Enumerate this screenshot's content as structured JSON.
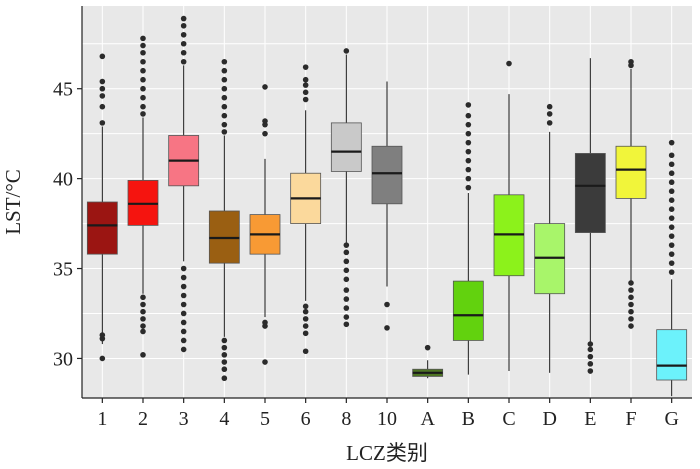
{
  "chart_data": {
    "type": "box",
    "xlabel": "LCZ类别",
    "ylabel": "LST/°C",
    "ylim": [
      27.8,
      49.6
    ],
    "yticks": [
      30,
      35,
      40,
      45
    ],
    "grid": true,
    "categories": [
      "1",
      "2",
      "3",
      "4",
      "5",
      "6",
      "8",
      "10",
      "A",
      "B",
      "C",
      "D",
      "E",
      "F",
      "G"
    ],
    "series": [
      {
        "category": "1",
        "color": "#9b1512",
        "whisker_low": 30.8,
        "q1": 35.8,
        "median": 37.4,
        "q3": 38.7,
        "whisker_high": 42.9,
        "outliers": [
          30.0,
          31.1,
          31.3,
          43.1,
          44.0,
          44.6,
          45.0,
          45.4,
          46.8
        ]
      },
      {
        "category": "2",
        "color": "#f5140f",
        "whisker_low": 33.6,
        "q1": 37.4,
        "median": 38.6,
        "q3": 39.9,
        "whisker_high": 43.4,
        "outliers": [
          30.2,
          31.5,
          31.8,
          32.2,
          32.6,
          33.0,
          33.4,
          43.6,
          44.0,
          44.5,
          45.0,
          45.5,
          46.0,
          46.5,
          47.0,
          47.4,
          47.8
        ]
      },
      {
        "category": "3",
        "color": "#f77584",
        "whisker_low": 35.4,
        "q1": 39.6,
        "median": 41.0,
        "q3": 42.4,
        "whisker_high": 46.3,
        "outliers": [
          30.5,
          31.0,
          31.5,
          32.0,
          32.5,
          33.0,
          33.5,
          34.0,
          34.5,
          35.0,
          46.5,
          47.0,
          47.5,
          48.0,
          48.5,
          48.9
        ]
      },
      {
        "category": "4",
        "color": "#9a5f12",
        "whisker_low": 31.2,
        "q1": 35.3,
        "median": 36.7,
        "q3": 38.2,
        "whisker_high": 42.4,
        "outliers": [
          28.9,
          29.4,
          29.8,
          30.2,
          30.6,
          31.0,
          42.6,
          43.0,
          43.5,
          44.0,
          44.5,
          45.0,
          45.5,
          46.0,
          46.5
        ]
      },
      {
        "category": "5",
        "color": "#f89a34",
        "whisker_low": 32.3,
        "q1": 35.8,
        "median": 36.9,
        "q3": 38.0,
        "whisker_high": 41.1,
        "outliers": [
          29.8,
          31.8,
          32.0,
          42.5,
          43.0,
          43.2,
          45.1
        ]
      },
      {
        "category": "6",
        "color": "#fbd99c",
        "whisker_low": 33.2,
        "q1": 37.5,
        "median": 38.9,
        "q3": 40.3,
        "whisker_high": 43.8,
        "outliers": [
          30.4,
          31.4,
          31.8,
          32.2,
          32.6,
          32.9,
          44.4,
          44.8,
          45.2,
          45.5,
          46.2
        ]
      },
      {
        "category": "8",
        "color": "#c9c9c9",
        "whisker_low": 36.4,
        "q1": 40.4,
        "median": 41.5,
        "q3": 43.1,
        "whisker_high": 46.9,
        "outliers": [
          31.9,
          32.3,
          32.8,
          33.3,
          33.8,
          34.4,
          34.9,
          35.4,
          35.9,
          36.3,
          47.1
        ]
      },
      {
        "category": "10",
        "color": "#7f7f7f",
        "whisker_low": 34.0,
        "q1": 38.6,
        "median": 40.3,
        "q3": 41.8,
        "whisker_high": 45.4,
        "outliers": [
          31.7,
          33.0
        ]
      },
      {
        "category": "A",
        "color": "#4e7424",
        "whisker_low": 28.9,
        "q1": 29.0,
        "median": 29.2,
        "q3": 29.4,
        "whisker_high": 29.9,
        "outliers": [
          30.6
        ]
      },
      {
        "category": "B",
        "color": "#62d20e",
        "whisker_low": 29.1,
        "q1": 31.0,
        "median": 32.4,
        "q3": 34.3,
        "whisker_high": 39.2,
        "outliers": [
          39.5,
          40.0,
          40.5,
          41.0,
          41.5,
          42.0,
          42.5,
          43.0,
          43.5,
          44.1
        ]
      },
      {
        "category": "C",
        "color": "#8cf21b",
        "whisker_low": 29.3,
        "q1": 34.6,
        "median": 36.9,
        "q3": 39.1,
        "whisker_high": 44.7,
        "outliers": [
          46.4
        ]
      },
      {
        "category": "D",
        "color": "#a8f56a",
        "whisker_low": 29.2,
        "q1": 33.6,
        "median": 35.6,
        "q3": 37.5,
        "whisker_high": 42.6,
        "outliers": [
          43.1,
          43.6,
          44.0
        ]
      },
      {
        "category": "E",
        "color": "#3b3b3b",
        "whisker_low": 30.9,
        "q1": 37.0,
        "median": 39.6,
        "q3": 41.4,
        "whisker_high": 46.7,
        "outliers": [
          29.3,
          29.7,
          30.1,
          30.5,
          30.8
        ]
      },
      {
        "category": "F",
        "color": "#f1f53a",
        "whisker_low": 34.3,
        "q1": 38.9,
        "median": 40.5,
        "q3": 41.8,
        "whisker_high": 46.1,
        "outliers": [
          31.8,
          32.2,
          32.6,
          33.0,
          33.4,
          33.8,
          34.2,
          46.3,
          46.5
        ]
      },
      {
        "category": "G",
        "color": "#6cf2fb",
        "whisker_low": 27.9,
        "q1": 28.8,
        "median": 29.6,
        "q3": 31.6,
        "whisker_high": 34.4,
        "outliers": [
          34.8,
          35.3,
          35.8,
          36.3,
          36.8,
          37.3,
          37.8,
          38.3,
          38.8,
          39.3,
          39.8,
          40.3,
          40.8,
          41.3,
          42.0
        ]
      }
    ]
  }
}
